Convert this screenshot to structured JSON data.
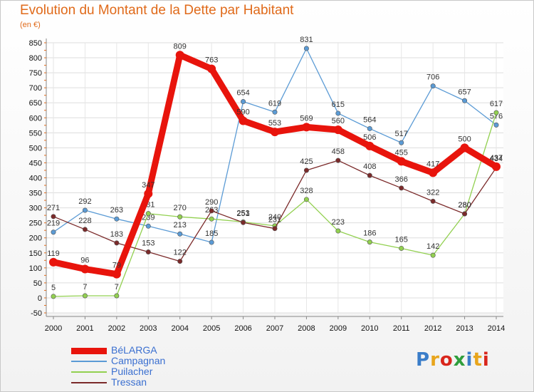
{
  "header": {
    "title": "Evolution du Montant de la Dette par Habitant",
    "unit": "(en €)"
  },
  "logo": {
    "text": "Proxiti",
    "colors": [
      "#3a7dc9",
      "#e8a51c",
      "#d9261c",
      "#2f9e3c",
      "#3a7dc9",
      "#e8a51c",
      "#d9261c"
    ]
  },
  "chart_data": {
    "type": "line",
    "title": "Evolution du Montant de la Dette par Habitant",
    "subtitle": "(en €)",
    "xlabel": "",
    "ylabel": "",
    "x": [
      "2000",
      "2001",
      "2002",
      "2003",
      "2004",
      "2005",
      "2006",
      "2007",
      "2008",
      "2009",
      "2010",
      "2011",
      "2012",
      "2013",
      "2014"
    ],
    "ylim": [
      -50,
      850
    ],
    "yticks": [
      -50,
      0,
      50,
      100,
      150,
      200,
      250,
      300,
      350,
      400,
      450,
      500,
      550,
      600,
      650,
      700,
      750,
      800,
      850
    ],
    "grid": true,
    "legend_position": "bottom-left",
    "series": [
      {
        "name": "BéLARGA",
        "color": "#e8140c",
        "width": "thick",
        "values": [
          119,
          96,
          79,
          347,
          809,
          763,
          590,
          553,
          569,
          560,
          506,
          455,
          417,
          500,
          437
        ]
      },
      {
        "name": "Campagnan",
        "color": "#5b9bd5",
        "width": "thin",
        "values": [
          219,
          292,
          263,
          239,
          213,
          185,
          654,
          619,
          831,
          615,
          564,
          517,
          706,
          657,
          576
        ]
      },
      {
        "name": "Puilacher",
        "color": "#92d050",
        "width": "thin",
        "values": [
          5,
          7,
          7,
          281,
          270,
          263,
          253,
          240,
          328,
          223,
          186,
          165,
          142,
          280,
          617
        ]
      },
      {
        "name": "Tressan",
        "color": "#7b2a2a",
        "width": "thin",
        "values": [
          271,
          228,
          183,
          153,
          122,
          290,
          251,
          231,
          425,
          458,
          408,
          366,
          322,
          280,
          434
        ]
      }
    ]
  }
}
